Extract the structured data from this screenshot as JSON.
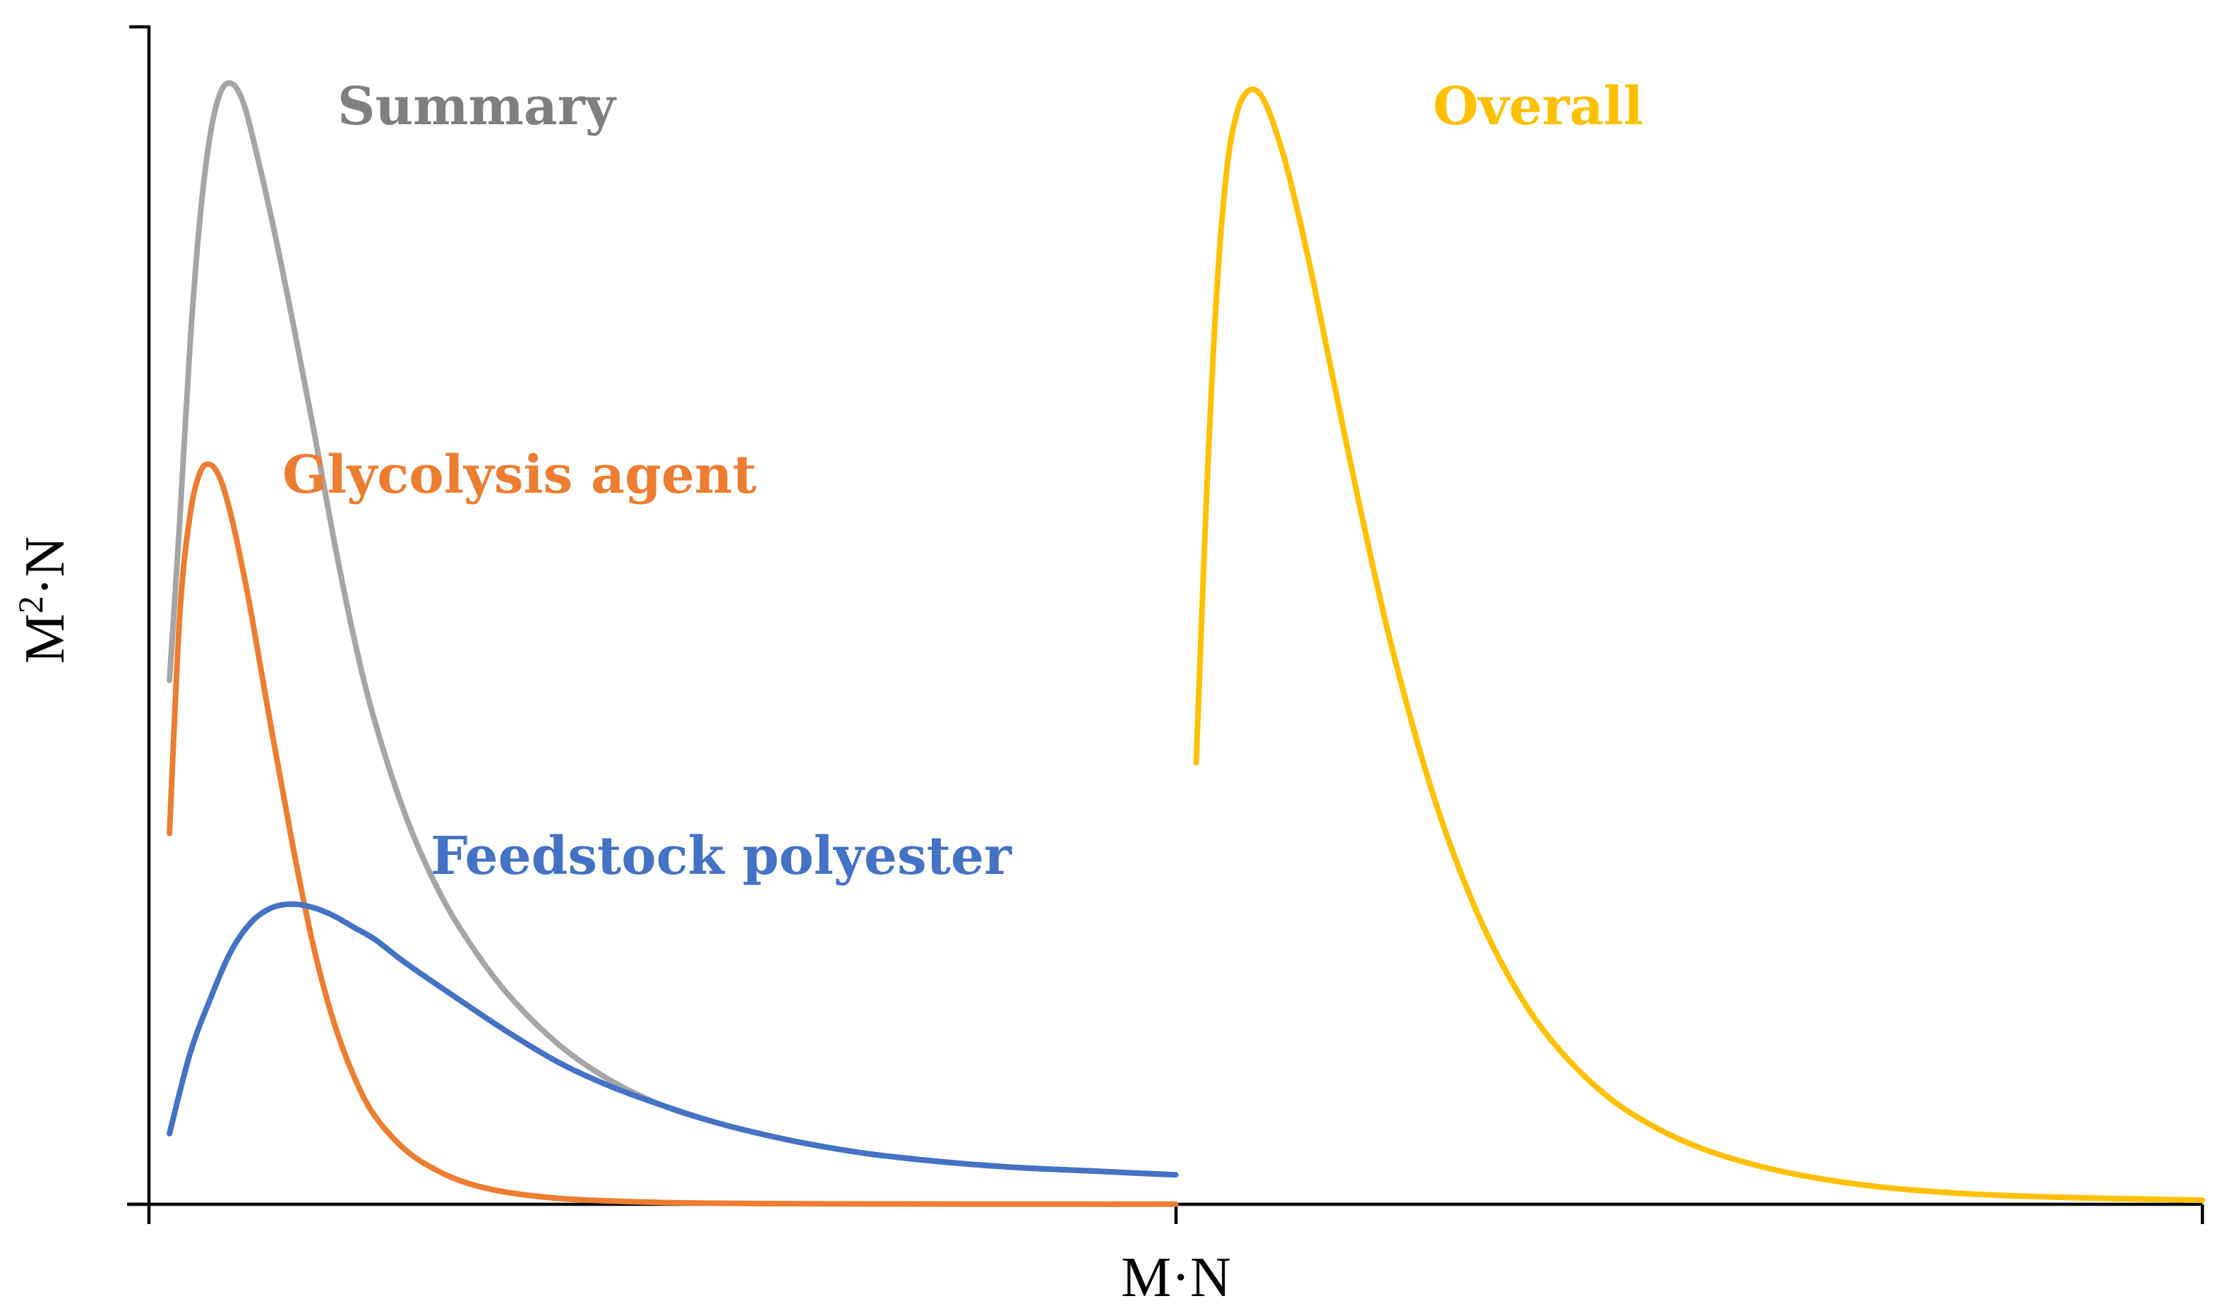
{
  "chart_data": {
    "type": "line",
    "title": "",
    "xlabel": "M·N",
    "ylabel_main": "M",
    "ylabel_sup": "2",
    "ylabel_rest": "·N",
    "xlim": [
      0,
      2.0
    ],
    "ylim": [
      0,
      100
    ],
    "x_ticks": [
      0,
      1,
      2
    ],
    "y_ticks": [
      0,
      100
    ],
    "tick_labels_shown": false,
    "grid": false,
    "legend": "none (inline labels)",
    "series": [
      {
        "name": "Summary",
        "color": "#A5A5A5",
        "x": [
          0.02,
          0.03,
          0.04,
          0.05,
          0.06,
          0.07,
          0.08,
          0.09,
          0.1,
          0.12,
          0.14,
          0.16,
          0.18,
          0.2,
          0.22,
          0.25,
          0.28,
          0.31,
          0.35,
          0.4,
          0.45,
          0.5,
          0.55,
          0.6,
          0.65,
          0.7,
          0.75,
          0.8,
          0.85,
          0.9,
          0.95,
          1.0
        ],
        "values": [
          44.5,
          58,
          73,
          84,
          91,
          94.5,
          95.2,
          94,
          91,
          83.5,
          75,
          66,
          56.5,
          48,
          41,
          33,
          27,
          22.5,
          17.8,
          13.5,
          10.5,
          8.4,
          7.0,
          5.9,
          5.0,
          4.3,
          3.8,
          3.4,
          3.1,
          2.9,
          2.7,
          2.5
        ]
      },
      {
        "name": "Glycolysis agent",
        "color": "#ED7D31",
        "x": [
          0.02,
          0.03,
          0.04,
          0.05,
          0.06,
          0.07,
          0.08,
          0.09,
          0.1,
          0.12,
          0.14,
          0.16,
          0.18,
          0.2,
          0.22,
          0.25,
          0.28,
          0.31,
          0.35,
          0.4,
          0.45,
          0.5,
          0.55,
          0.6,
          0.7,
          0.8,
          0.9,
          1.0
        ],
        "values": [
          31.5,
          50,
          58.5,
          62.2,
          62.8,
          61.5,
          58.5,
          54.5,
          50,
          40,
          30.5,
          22,
          15.5,
          10.8,
          7.5,
          4.6,
          2.9,
          1.8,
          1.0,
          0.5,
          0.28,
          0.15,
          0.09,
          0.06,
          0.03,
          0.02,
          0.01,
          0.01
        ]
      },
      {
        "name": "Feedstock polyester",
        "color": "#4472C4",
        "x": [
          0.02,
          0.04,
          0.06,
          0.08,
          0.1,
          0.12,
          0.14,
          0.16,
          0.18,
          0.2,
          0.22,
          0.25,
          0.3,
          0.35,
          0.4,
          0.45,
          0.5,
          0.55,
          0.6,
          0.65,
          0.7,
          0.75,
          0.8,
          0.85,
          0.9,
          0.95,
          1.0
        ],
        "values": [
          6.0,
          12.8,
          17.5,
          21.5,
          24.0,
          25.2,
          25.5,
          25.2,
          24.5,
          23.5,
          22.5,
          20.5,
          17.5,
          14.6,
          12.0,
          10.0,
          8.4,
          7.0,
          5.9,
          5.0,
          4.3,
          3.8,
          3.4,
          3.1,
          2.9,
          2.7,
          2.5
        ]
      },
      {
        "name": "Overall",
        "color": "#FFC000",
        "x": [
          1.02,
          1.03,
          1.04,
          1.05,
          1.06,
          1.07,
          1.08,
          1.09,
          1.1,
          1.11,
          1.13,
          1.15,
          1.18,
          1.21,
          1.25,
          1.29,
          1.33,
          1.37,
          1.42,
          1.47,
          1.52,
          1.58,
          1.64,
          1.7,
          1.76,
          1.82,
          1.88,
          1.94,
          2.0
        ],
        "values": [
          37.5,
          60,
          77.5,
          88,
          92.8,
          94.5,
          94.5,
          93,
          90.5,
          87.5,
          80,
          71.5,
          59,
          47.5,
          35,
          25.5,
          18.5,
          13.5,
          9.2,
          6.4,
          4.5,
          3.0,
          2.0,
          1.35,
          0.95,
          0.7,
          0.55,
          0.45,
          0.35
        ]
      }
    ],
    "annotations": [
      {
        "text": "Summary",
        "series": "Summary",
        "color": "#7F7F7F"
      },
      {
        "text": "Glycolysis agent",
        "series": "Glycolysis agent",
        "color": "#ED7D31"
      },
      {
        "text": "Feedstock polyester",
        "series": "Feedstock polyester",
        "color": "#4472C4"
      },
      {
        "text": "Overall",
        "series": "Overall",
        "color": "#FFC000"
      }
    ]
  }
}
